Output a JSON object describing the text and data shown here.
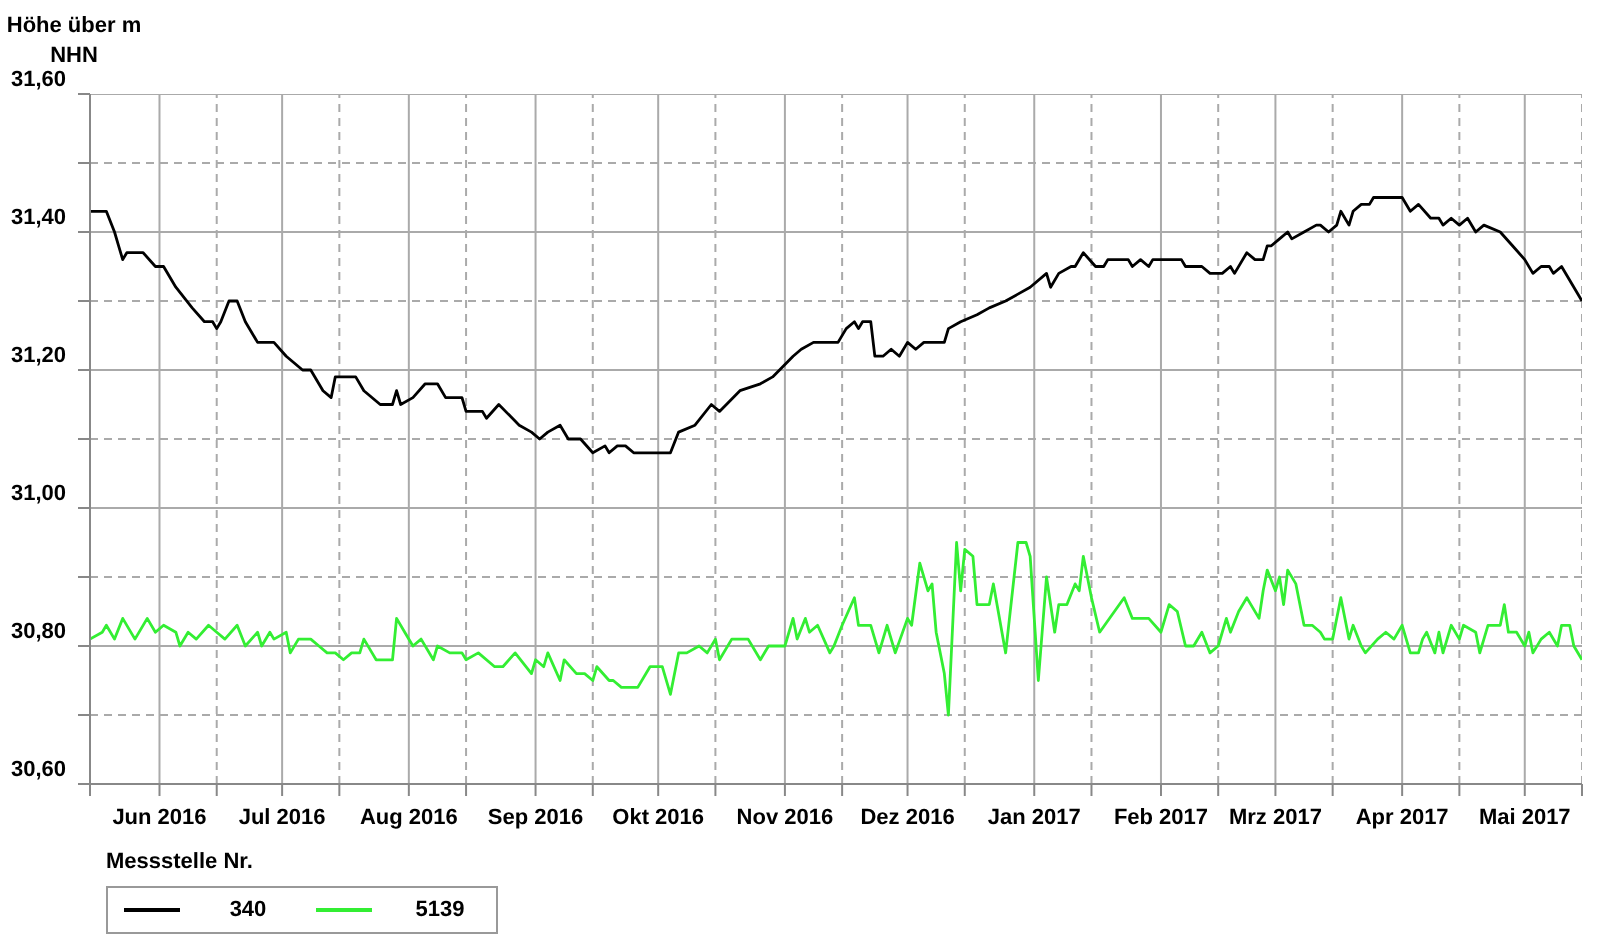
{
  "chart_data": {
    "type": "line",
    "ylabel": "Höhe über m NHN",
    "legend_title": "Messstelle Nr.",
    "legend": "bottom left",
    "grid": true,
    "line_style": "solid",
    "marker": "none",
    "xlim": [
      "2016-05-15",
      "2017-05-15"
    ],
    "xticks": [
      {
        "value": "2016-05-15",
        "label": null
      },
      {
        "value": "2016-06-01",
        "label": "Jun 2016"
      },
      {
        "value": "2016-06-15",
        "label": null
      },
      {
        "value": "2016-07-01",
        "label": "Jul 2016"
      },
      {
        "value": "2016-07-15",
        "label": null
      },
      {
        "value": "2016-08-01",
        "label": "Aug 2016"
      },
      {
        "value": "2016-08-15",
        "label": null
      },
      {
        "value": "2016-09-01",
        "label": "Sep 2016"
      },
      {
        "value": "2016-09-15",
        "label": null
      },
      {
        "value": "2016-10-01",
        "label": "Okt 2016"
      },
      {
        "value": "2016-10-15",
        "label": null
      },
      {
        "value": "2016-11-01",
        "label": "Nov 2016"
      },
      {
        "value": "2016-11-15",
        "label": null
      },
      {
        "value": "2016-12-01",
        "label": "Dez 2016"
      },
      {
        "value": "2016-12-15",
        "label": null
      },
      {
        "value": "2017-01-01",
        "label": "Jan 2017"
      },
      {
        "value": "2017-01-15",
        "label": null
      },
      {
        "value": "2017-02-01",
        "label": "Feb 2017"
      },
      {
        "value": "2017-02-15",
        "label": null
      },
      {
        "value": "2017-03-01",
        "label": "Mrz 2017"
      },
      {
        "value": "2017-03-15",
        "label": null
      },
      {
        "value": "2017-04-01",
        "label": "Apr 2017"
      },
      {
        "value": "2017-04-15",
        "label": null
      },
      {
        "value": "2017-05-01",
        "label": "Mai 2017"
      },
      {
        "value": "2017-05-15",
        "label": null
      }
    ],
    "ylim": [
      30.6,
      31.6
    ],
    "yticks": [
      {
        "value": 30.6,
        "label": "30,60"
      },
      {
        "value": 30.7,
        "label": null
      },
      {
        "value": 30.8,
        "label": "30,80"
      },
      {
        "value": 30.9,
        "label": null
      },
      {
        "value": 31.0,
        "label": "31,00"
      },
      {
        "value": 31.1,
        "label": null
      },
      {
        "value": 31.2,
        "label": "31,20"
      },
      {
        "value": 31.3,
        "label": null
      },
      {
        "value": 31.4,
        "label": "31,40"
      },
      {
        "value": 31.5,
        "label": null
      },
      {
        "value": 31.6,
        "label": "31,60"
      }
    ],
    "series": [
      {
        "name": "340",
        "color": "#000000",
        "x": [
          "2016-05-15",
          "2016-05-19",
          "2016-05-21",
          "2016-05-22",
          "2016-05-23",
          "2016-05-24",
          "2016-05-28",
          "2016-05-31",
          "2016-06-02",
          "2016-06-05",
          "2016-06-09",
          "2016-06-12",
          "2016-06-14",
          "2016-06-15",
          "2016-06-16",
          "2016-06-18",
          "2016-06-20",
          "2016-06-22",
          "2016-06-25",
          "2016-06-29",
          "2016-07-02",
          "2016-07-06",
          "2016-07-08",
          "2016-07-11",
          "2016-07-13",
          "2016-07-14",
          "2016-07-19",
          "2016-07-21",
          "2016-07-25",
          "2016-07-28",
          "2016-07-29",
          "2016-07-30",
          "2016-08-02",
          "2016-08-05",
          "2016-08-08",
          "2016-08-10",
          "2016-08-14",
          "2016-08-15",
          "2016-08-19",
          "2016-08-20",
          "2016-08-23",
          "2016-08-28",
          "2016-08-31",
          "2016-09-02",
          "2016-09-04",
          "2016-09-07",
          "2016-09-09",
          "2016-09-12",
          "2016-09-15",
          "2016-09-18",
          "2016-09-19",
          "2016-09-21",
          "2016-09-23",
          "2016-09-25",
          "2016-09-26",
          "2016-10-04",
          "2016-10-06",
          "2016-10-10",
          "2016-10-14",
          "2016-10-16",
          "2016-10-21",
          "2016-10-26",
          "2016-10-29",
          "2016-11-03",
          "2016-11-05",
          "2016-11-08",
          "2016-11-14",
          "2016-11-16",
          "2016-11-18",
          "2016-11-19",
          "2016-11-20",
          "2016-11-22",
          "2016-11-23",
          "2016-11-25",
          "2016-11-27",
          "2016-11-29",
          "2016-12-01",
          "2016-12-03",
          "2016-12-05",
          "2016-12-10",
          "2016-12-11",
          "2016-12-14",
          "2016-12-18",
          "2016-12-21",
          "2016-12-25",
          "2016-12-28",
          "2016-12-31",
          "2017-01-04",
          "2017-01-05",
          "2017-01-07",
          "2017-01-10",
          "2017-01-11",
          "2017-01-13",
          "2017-01-16",
          "2017-01-18",
          "2017-01-19",
          "2017-01-24",
          "2017-01-25",
          "2017-01-27",
          "2017-01-29",
          "2017-01-30",
          "2017-02-06",
          "2017-02-07",
          "2017-02-11",
          "2017-02-13",
          "2017-02-16",
          "2017-02-18",
          "2017-02-19",
          "2017-02-22",
          "2017-02-24",
          "2017-02-26",
          "2017-02-27",
          "2017-02-28",
          "2017-03-02",
          "2017-03-04",
          "2017-03-05",
          "2017-03-08",
          "2017-03-11",
          "2017-03-12",
          "2017-03-14",
          "2017-03-16",
          "2017-03-17",
          "2017-03-19",
          "2017-03-20",
          "2017-03-22",
          "2017-03-24",
          "2017-03-25",
          "2017-04-01",
          "2017-04-03",
          "2017-04-05",
          "2017-04-08",
          "2017-04-10",
          "2017-04-11",
          "2017-04-13",
          "2017-04-15",
          "2017-04-17",
          "2017-04-19",
          "2017-04-21",
          "2017-04-25",
          "2017-04-28",
          "2017-05-01",
          "2017-05-03",
          "2017-05-05",
          "2017-05-07",
          "2017-05-08",
          "2017-05-10",
          "2017-05-15"
        ],
        "values": [
          31.43,
          31.43,
          31.4,
          31.38,
          31.36,
          31.37,
          31.37,
          31.35,
          31.35,
          31.32,
          31.29,
          31.27,
          31.27,
          31.26,
          31.27,
          31.3,
          31.3,
          31.27,
          31.24,
          31.24,
          31.22,
          31.2,
          31.2,
          31.17,
          31.16,
          31.19,
          31.19,
          31.17,
          31.15,
          31.15,
          31.17,
          31.15,
          31.16,
          31.18,
          31.18,
          31.16,
          31.16,
          31.14,
          31.14,
          31.13,
          31.15,
          31.12,
          31.11,
          31.1,
          31.11,
          31.12,
          31.1,
          31.1,
          31.08,
          31.09,
          31.08,
          31.09,
          31.09,
          31.08,
          31.08,
          31.08,
          31.11,
          31.12,
          31.15,
          31.14,
          31.17,
          31.18,
          31.19,
          31.22,
          31.23,
          31.24,
          31.24,
          31.26,
          31.27,
          31.26,
          31.27,
          31.27,
          31.22,
          31.22,
          31.23,
          31.22,
          31.24,
          31.23,
          31.24,
          31.24,
          31.26,
          31.27,
          31.28,
          31.29,
          31.3,
          31.31,
          31.32,
          31.34,
          31.32,
          31.34,
          31.35,
          31.35,
          31.37,
          31.35,
          31.35,
          31.36,
          31.36,
          31.35,
          31.36,
          31.35,
          31.36,
          31.36,
          31.35,
          31.35,
          31.34,
          31.34,
          31.35,
          31.34,
          31.37,
          31.36,
          31.36,
          31.38,
          31.38,
          31.39,
          31.4,
          31.39,
          31.4,
          31.41,
          31.41,
          31.4,
          31.41,
          31.43,
          31.41,
          31.43,
          31.44,
          31.44,
          31.45,
          31.45,
          31.43,
          31.44,
          31.42,
          31.42,
          31.41,
          31.42,
          31.41,
          31.42,
          31.4,
          31.41,
          31.4,
          31.38,
          31.36,
          31.34,
          31.35,
          31.35,
          31.34,
          31.35,
          31.3
        ]
      },
      {
        "name": "5139",
        "color": "#33ee33",
        "x": [
          "2016-05-15",
          "2016-05-18",
          "2016-05-19",
          "2016-05-21",
          "2016-05-23",
          "2016-05-26",
          "2016-05-29",
          "2016-05-31",
          "2016-06-02",
          "2016-06-05",
          "2016-06-06",
          "2016-06-08",
          "2016-06-10",
          "2016-06-13",
          "2016-06-15",
          "2016-06-17",
          "2016-06-20",
          "2016-06-22",
          "2016-06-25",
          "2016-06-26",
          "2016-06-28",
          "2016-06-29",
          "2016-07-02",
          "2016-07-03",
          "2016-07-05",
          "2016-07-08",
          "2016-07-10",
          "2016-07-12",
          "2016-07-14",
          "2016-07-16",
          "2016-07-18",
          "2016-07-20",
          "2016-07-21",
          "2016-07-23",
          "2016-07-24",
          "2016-07-28",
          "2016-07-29",
          "2016-07-31",
          "2016-08-02",
          "2016-08-04",
          "2016-08-07",
          "2016-08-08",
          "2016-08-11",
          "2016-08-14",
          "2016-08-15",
          "2016-08-18",
          "2016-08-22",
          "2016-08-24",
          "2016-08-27",
          "2016-08-31",
          "2016-09-01",
          "2016-09-03",
          "2016-09-04",
          "2016-09-07",
          "2016-09-08",
          "2016-09-11",
          "2016-09-13",
          "2016-09-15",
          "2016-09-16",
          "2016-09-19",
          "2016-09-20",
          "2016-09-22",
          "2016-09-25",
          "2016-09-26",
          "2016-09-29",
          "2016-10-02",
          "2016-10-04",
          "2016-10-06",
          "2016-10-08",
          "2016-10-11",
          "2016-10-13",
          "2016-10-15",
          "2016-10-16",
          "2016-10-19",
          "2016-10-23",
          "2016-10-26",
          "2016-10-28",
          "2016-11-01",
          "2016-11-03",
          "2016-11-04",
          "2016-11-06",
          "2016-11-07",
          "2016-11-09",
          "2016-11-12",
          "2016-11-13",
          "2016-11-15",
          "2016-11-18",
          "2016-11-19",
          "2016-11-22",
          "2016-11-24",
          "2016-11-26",
          "2016-11-28",
          "2016-12-01",
          "2016-12-02",
          "2016-12-04",
          "2016-12-06",
          "2016-12-07",
          "2016-12-08",
          "2016-12-10",
          "2016-12-11",
          "2016-12-13",
          "2016-12-14",
          "2016-12-15",
          "2016-12-17",
          "2016-12-18",
          "2016-12-21",
          "2016-12-22",
          "2016-12-25",
          "2016-12-28",
          "2016-12-30",
          "2016-12-31",
          "2017-01-02",
          "2017-01-04",
          "2017-01-06",
          "2017-01-07",
          "2017-01-09",
          "2017-01-11",
          "2017-01-12",
          "2017-01-13",
          "2017-01-15",
          "2017-01-17",
          "2017-01-23",
          "2017-01-25",
          "2017-01-29",
          "2017-02-01",
          "2017-02-03",
          "2017-02-05",
          "2017-02-07",
          "2017-02-09",
          "2017-02-11",
          "2017-02-13",
          "2017-02-15",
          "2017-02-17",
          "2017-02-18",
          "2017-02-20",
          "2017-02-22",
          "2017-02-23",
          "2017-02-25",
          "2017-02-26",
          "2017-02-27",
          "2017-03-01",
          "2017-03-02",
          "2017-03-03",
          "2017-03-04",
          "2017-03-06",
          "2017-03-08",
          "2017-03-10",
          "2017-03-12",
          "2017-03-13",
          "2017-03-15",
          "2017-03-17",
          "2017-03-19",
          "2017-03-20",
          "2017-03-22",
          "2017-03-23",
          "2017-03-26",
          "2017-03-28",
          "2017-03-30",
          "2017-04-01",
          "2017-04-03",
          "2017-04-05",
          "2017-04-06",
          "2017-04-07",
          "2017-04-09",
          "2017-04-10",
          "2017-04-11",
          "2017-04-13",
          "2017-04-15",
          "2017-04-16",
          "2017-04-19",
          "2017-04-20",
          "2017-04-22",
          "2017-04-25",
          "2017-04-26",
          "2017-04-27",
          "2017-04-29",
          "2017-05-01",
          "2017-05-02",
          "2017-05-03",
          "2017-05-05",
          "2017-05-07",
          "2017-05-09",
          "2017-05-10",
          "2017-05-12",
          "2017-05-13",
          "2017-05-15"
        ],
        "values": [
          30.81,
          30.82,
          30.83,
          30.81,
          30.84,
          30.81,
          30.84,
          30.82,
          30.83,
          30.82,
          30.8,
          30.82,
          30.81,
          30.83,
          30.82,
          30.81,
          30.83,
          30.8,
          30.82,
          30.8,
          30.82,
          30.81,
          30.82,
          30.79,
          30.81,
          30.81,
          30.8,
          30.79,
          30.79,
          30.78,
          30.79,
          30.79,
          30.81,
          30.79,
          30.78,
          30.78,
          30.84,
          30.82,
          30.8,
          30.81,
          30.78,
          30.8,
          30.79,
          30.79,
          30.78,
          30.79,
          30.77,
          30.77,
          30.79,
          30.76,
          30.78,
          30.77,
          30.79,
          30.75,
          30.78,
          30.76,
          30.76,
          30.75,
          30.77,
          30.75,
          30.75,
          30.74,
          30.74,
          30.74,
          30.77,
          30.77,
          30.73,
          30.79,
          30.79,
          30.8,
          30.79,
          30.81,
          30.78,
          30.81,
          30.81,
          30.78,
          30.8,
          30.8,
          30.84,
          30.81,
          30.84,
          30.82,
          30.83,
          30.79,
          30.8,
          30.83,
          30.87,
          30.83,
          30.83,
          30.79,
          30.83,
          30.79,
          30.84,
          30.83,
          30.92,
          30.88,
          30.89,
          30.82,
          30.76,
          30.7,
          30.95,
          30.88,
          30.94,
          30.93,
          30.86,
          30.86,
          30.89,
          30.79,
          30.95,
          30.95,
          30.93,
          30.75,
          30.9,
          30.82,
          30.86,
          30.86,
          30.89,
          30.88,
          30.93,
          30.87,
          30.82,
          30.87,
          30.84,
          30.84,
          30.82,
          30.86,
          30.85,
          30.8,
          30.8,
          30.82,
          30.79,
          30.8,
          30.84,
          30.82,
          30.85,
          30.87,
          30.86,
          30.84,
          30.88,
          30.91,
          30.88,
          30.9,
          30.86,
          30.91,
          30.89,
          30.83,
          30.83,
          30.82,
          30.81,
          30.81,
          30.87,
          30.81,
          30.83,
          30.8,
          30.79,
          30.81,
          30.82,
          30.81,
          30.83,
          30.79,
          30.79,
          30.81,
          30.82,
          30.79,
          30.82,
          30.79,
          30.83,
          30.81,
          30.83,
          30.82,
          30.79,
          30.83,
          30.83,
          30.86,
          30.82,
          30.82,
          30.8,
          30.82,
          30.79,
          30.81,
          30.82,
          30.8,
          30.83,
          30.83,
          30.8,
          30.78
        ]
      }
    ]
  }
}
